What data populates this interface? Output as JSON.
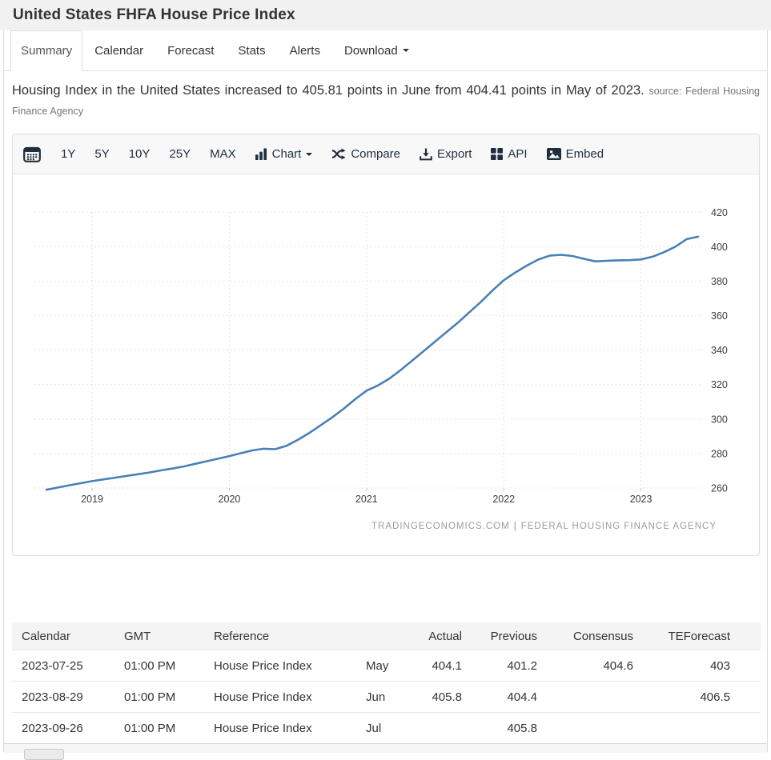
{
  "header": {
    "title": "United States FHFA House Price Index"
  },
  "tabs": [
    {
      "label": "Summary",
      "active": true
    },
    {
      "label": "Calendar",
      "active": false
    },
    {
      "label": "Forecast",
      "active": false
    },
    {
      "label": "Stats",
      "active": false
    },
    {
      "label": "Alerts",
      "active": false
    },
    {
      "label": "Download",
      "active": false,
      "has_dropdown": true
    }
  ],
  "summary": {
    "text": "Housing Index in the United States increased to 405.81 points in June from 404.41 points in May of 2023.",
    "source": "source: Federal Housing Finance Agency"
  },
  "toolbar": {
    "calendar_icon": "calendar-picker-icon",
    "ranges": [
      "1Y",
      "5Y",
      "10Y",
      "25Y",
      "MAX"
    ],
    "chart_label": "Chart",
    "compare_label": "Compare",
    "export_label": "Export",
    "api_label": "API",
    "embed_label": "Embed"
  },
  "chart_data": {
    "type": "line",
    "title": "United States FHFA House Price Index",
    "frequency": "monthly",
    "x_start": "2018-09",
    "x_end": "2023-06",
    "x_tick_labels": [
      "2019",
      "2020",
      "2021",
      "2022",
      "2023"
    ],
    "y_ticks": [
      260,
      280,
      300,
      320,
      340,
      360,
      380,
      400,
      420
    ],
    "ylim": [
      255,
      428
    ],
    "grid": "dashed",
    "legend": "none",
    "axis_label_color": "#3c3c3c",
    "gridline_color": "#e4e4e4",
    "series": [
      {
        "name": "FHFA House Price Index (points)",
        "color": "#4a80b6",
        "values": [
          259.0,
          260.3,
          261.6,
          262.8,
          264.0,
          265.0,
          266.0,
          267.0,
          268.0,
          269.0,
          270.2,
          271.3,
          272.5,
          274.0,
          275.5,
          277.0,
          278.5,
          280.2,
          281.8,
          282.8,
          282.5,
          284.5,
          288.0,
          292.0,
          296.5,
          301.0,
          306.0,
          311.5,
          316.5,
          319.5,
          323.5,
          328.5,
          334.0,
          339.5,
          345.0,
          350.5,
          356.0,
          362.0,
          368.0,
          374.5,
          380.5,
          385.0,
          389.0,
          392.5,
          394.8,
          395.3,
          394.6,
          393.0,
          391.5,
          391.8,
          392.1,
          392.2,
          392.6,
          394.2,
          396.8,
          400.0,
          404.41,
          405.81
        ]
      }
    ]
  },
  "watermark": {
    "site": "TRADINGECONOMICS.COM",
    "separator": "|",
    "source": "FEDERAL HOUSING FINANCE AGENCY"
  },
  "table": {
    "headers": [
      "Calendar",
      "GMT",
      "Reference",
      "",
      "Actual",
      "Previous",
      "Consensus",
      "TEForecast"
    ],
    "rows": [
      [
        "2023-07-25",
        "01:00 PM",
        "House Price Index",
        "May",
        "404.1",
        "401.2",
        "404.6",
        "403"
      ],
      [
        "2023-08-29",
        "01:00 PM",
        "House Price Index",
        "Jun",
        "405.8",
        "404.4",
        "",
        "406.5"
      ],
      [
        "2023-09-26",
        "01:00 PM",
        "House Price Index",
        "Jul",
        "",
        "405.8",
        "",
        ""
      ]
    ]
  }
}
